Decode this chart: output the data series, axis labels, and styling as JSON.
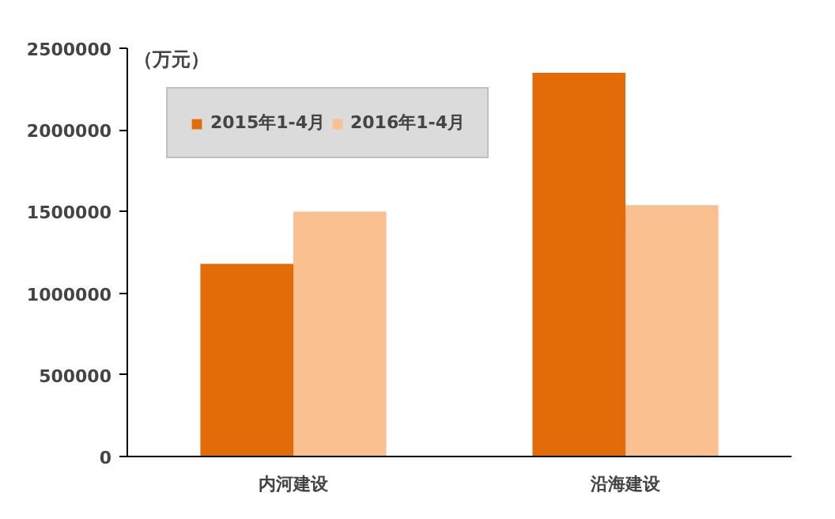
{
  "chart_data": {
    "type": "bar",
    "ylabel": "（万元）",
    "categories": [
      "内河建设",
      "沿海建设"
    ],
    "series": [
      {
        "name": "2015年1-4月",
        "color": "#e36c09",
        "values": [
          1180000,
          2350000
        ]
      },
      {
        "name": "2016年1-4月",
        "color": "#fac090",
        "values": [
          1500000,
          1540000
        ]
      }
    ],
    "ylim": [
      0,
      2500000
    ],
    "yticks": [
      0,
      500000,
      1000000,
      1500000,
      2000000,
      2500000
    ],
    "grid": false,
    "legend": "top left"
  }
}
